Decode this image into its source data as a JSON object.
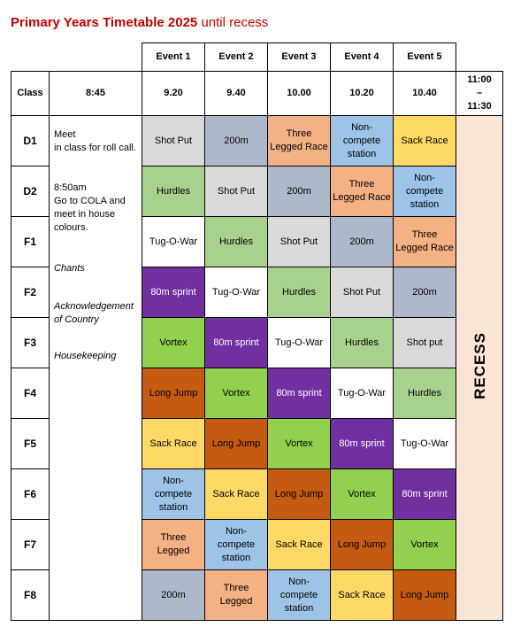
{
  "header": {
    "title": "Primary Years Timetable 2025",
    "subtitle": "until recess"
  },
  "table": {
    "events": [
      "Event 1",
      "Event 2",
      "Event 3",
      "Event 4",
      "Event 5"
    ],
    "class_label": "Class",
    "start_time": "8:45",
    "times": [
      "9.20",
      "9.40",
      "10.00",
      "10.20",
      "10.40"
    ],
    "recess_time": "11:00\n–\n11:30",
    "recess_label": "RECESS",
    "notes": {
      "plain": [
        "Meet\nin class for roll call.",
        "8:50am\nGo to COLA and\nmeet in house\ncolours."
      ],
      "italic": [
        "Chants",
        "Acknowledgement\nof Country",
        "Housekeeping"
      ]
    },
    "rows": [
      {
        "class": "D1",
        "cells": [
          {
            "text": "Shot Put",
            "fill": "#d9d9d9"
          },
          {
            "text": "200m",
            "fill": "#adb9ca"
          },
          {
            "text": "Three Legged Race",
            "fill": "#f4b183"
          },
          {
            "text": "Non-compete station",
            "fill": "#9dc3e6"
          },
          {
            "text": "Sack Race",
            "fill": "#ffd966"
          }
        ]
      },
      {
        "class": "D2",
        "cells": [
          {
            "text": "Hurdles",
            "fill": "#a9d18e"
          },
          {
            "text": "Shot Put",
            "fill": "#d9d9d9"
          },
          {
            "text": "200m",
            "fill": "#adb9ca"
          },
          {
            "text": "Three Legged Race",
            "fill": "#f4b183"
          },
          {
            "text": "Non-compete station",
            "fill": "#9dc3e6"
          }
        ]
      },
      {
        "class": "F1",
        "cells": [
          {
            "text": "Tug-O-War",
            "fill": "#ffffff"
          },
          {
            "text": "Hurdles",
            "fill": "#a9d18e"
          },
          {
            "text": "Shot Put",
            "fill": "#d9d9d9"
          },
          {
            "text": "200m",
            "fill": "#adb9ca"
          },
          {
            "text": "Three Legged Race",
            "fill": "#f4b183"
          }
        ]
      },
      {
        "class": "F2",
        "cells": [
          {
            "text": "80m sprint",
            "fill": "#7030a0"
          },
          {
            "text": "Tug-O-War",
            "fill": "#ffffff"
          },
          {
            "text": "Hurdles",
            "fill": "#a9d18e"
          },
          {
            "text": "Shot Put",
            "fill": "#d9d9d9"
          },
          {
            "text": "200m",
            "fill": "#adb9ca"
          }
        ]
      },
      {
        "class": "F3",
        "cells": [
          {
            "text": "Vortex",
            "fill": "#92d050"
          },
          {
            "text": "80m sprint",
            "fill": "#7030a0"
          },
          {
            "text": "Tug-O-War",
            "fill": "#ffffff"
          },
          {
            "text": "Hurdles",
            "fill": "#a9d18e"
          },
          {
            "text": "Shot put",
            "fill": "#d9d9d9"
          }
        ]
      },
      {
        "class": "F4",
        "cells": [
          {
            "text": "Long Jump",
            "fill": "#c55a11"
          },
          {
            "text": "Vortex",
            "fill": "#92d050"
          },
          {
            "text": "80m sprint",
            "fill": "#7030a0"
          },
          {
            "text": "Tug-O-War",
            "fill": "#ffffff"
          },
          {
            "text": "Hurdles",
            "fill": "#a9d18e"
          }
        ]
      },
      {
        "class": "F5",
        "cells": [
          {
            "text": "Sack Race",
            "fill": "#ffd966"
          },
          {
            "text": "Long Jump",
            "fill": "#c55a11"
          },
          {
            "text": "Vortex",
            "fill": "#92d050"
          },
          {
            "text": "80m sprint",
            "fill": "#7030a0"
          },
          {
            "text": "Tug-O-War",
            "fill": "#ffffff"
          }
        ]
      },
      {
        "class": "F6",
        "cells": [
          {
            "text": "Non-compete station",
            "fill": "#9dc3e6"
          },
          {
            "text": "Sack Race",
            "fill": "#ffd966"
          },
          {
            "text": "Long Jump",
            "fill": "#c55a11"
          },
          {
            "text": "Vortex",
            "fill": "#92d050"
          },
          {
            "text": "80m sprint",
            "fill": "#7030a0"
          }
        ]
      },
      {
        "class": "F7",
        "cells": [
          {
            "text": "Three Legged",
            "fill": "#f4b183"
          },
          {
            "text": "Non-compete station",
            "fill": "#9dc3e6"
          },
          {
            "text": "Sack Race",
            "fill": "#ffd966"
          },
          {
            "text": "Long Jump",
            "fill": "#c55a11"
          },
          {
            "text": "Vortex",
            "fill": "#92d050"
          }
        ]
      },
      {
        "class": "F8",
        "cells": [
          {
            "text": "200m",
            "fill": "#adb9ca"
          },
          {
            "text": "Three Legged",
            "fill": "#f4b183"
          },
          {
            "text": "Non-compete station",
            "fill": "#9dc3e6"
          },
          {
            "text": "Sack Race",
            "fill": "#ffd966"
          },
          {
            "text": "Long Jump",
            "fill": "#c55a11"
          }
        ]
      }
    ]
  }
}
